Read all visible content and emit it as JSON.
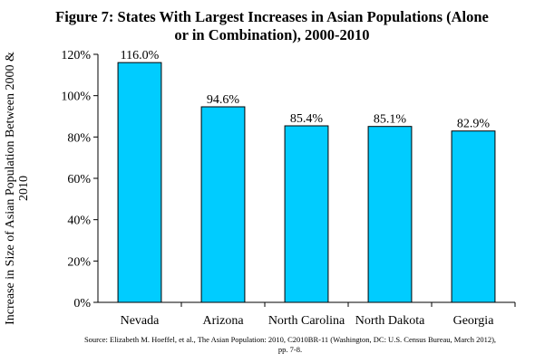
{
  "chart_data": {
    "type": "bar",
    "title_line1": "Figure 7: States With Largest Increases in Asian Populations (Alone",
    "title_line2": "or in Combination), 2000-2010",
    "xlabel": "",
    "ylabel": "Increase in Size of Asian Population Between 2000 & 2010",
    "categories": [
      "Nevada",
      "Arizona",
      "North Carolina",
      "North Dakota",
      "Georgia"
    ],
    "values": [
      116.0,
      94.6,
      85.4,
      85.1,
      82.9
    ],
    "data_labels": [
      "116.0%",
      "94.6%",
      "85.4%",
      "85.1%",
      "82.9%"
    ],
    "ylim": [
      0,
      120
    ],
    "yticks": [
      0,
      20,
      40,
      60,
      80,
      100,
      120
    ],
    "ytick_labels": [
      "0%",
      "20%",
      "40%",
      "60%",
      "80%",
      "100%",
      "120%"
    ],
    "grid": false,
    "legend": "none",
    "bar_color": "#00ccff",
    "bar_edge_color": "#000000"
  },
  "source": {
    "line1": "Source: Elizabeth M. Hoeffel, et al., The Asian Population: 2010, C2010BR-11 (Washington, DC: U.S. Census Bureau, March 2012),",
    "line2": "pp. 7-8."
  }
}
